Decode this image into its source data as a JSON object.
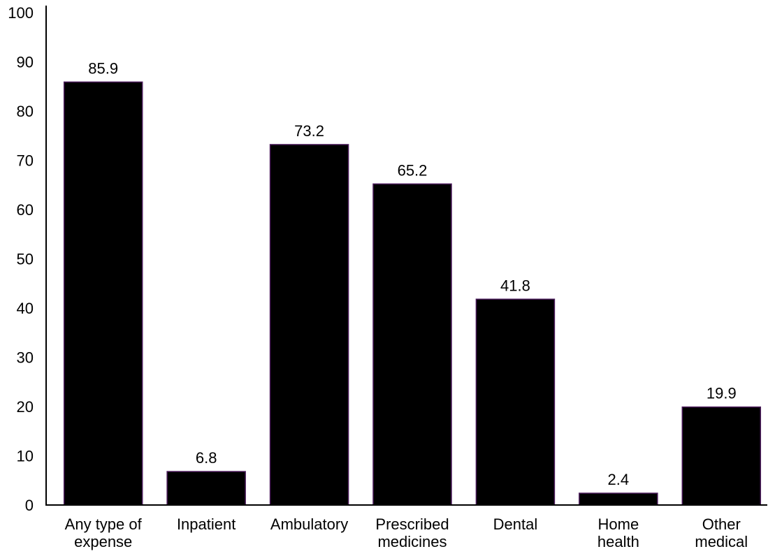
{
  "chart_data": {
    "type": "bar",
    "title": "",
    "xlabel": "",
    "ylabel": "",
    "ylim": [
      0,
      100
    ],
    "yticks": [
      0,
      10,
      20,
      30,
      40,
      50,
      60,
      70,
      80,
      90,
      100
    ],
    "categories": [
      [
        "Any type of",
        "expense"
      ],
      [
        "Inpatient"
      ],
      [
        "Ambulatory"
      ],
      [
        "Prescribed",
        "medicines"
      ],
      [
        "Dental"
      ],
      [
        "Home",
        "health"
      ],
      [
        "Other",
        "medical"
      ]
    ],
    "values": [
      85.9,
      6.8,
      73.2,
      65.2,
      41.8,
      2.4,
      19.9
    ],
    "value_labels": [
      "85.9",
      "6.8",
      "73.2",
      "65.2",
      "41.8",
      "2.4",
      "19.9"
    ],
    "grid": false,
    "legend": "none",
    "bar_color": "#000000",
    "bar_edge_color": "#4a1a5a"
  }
}
